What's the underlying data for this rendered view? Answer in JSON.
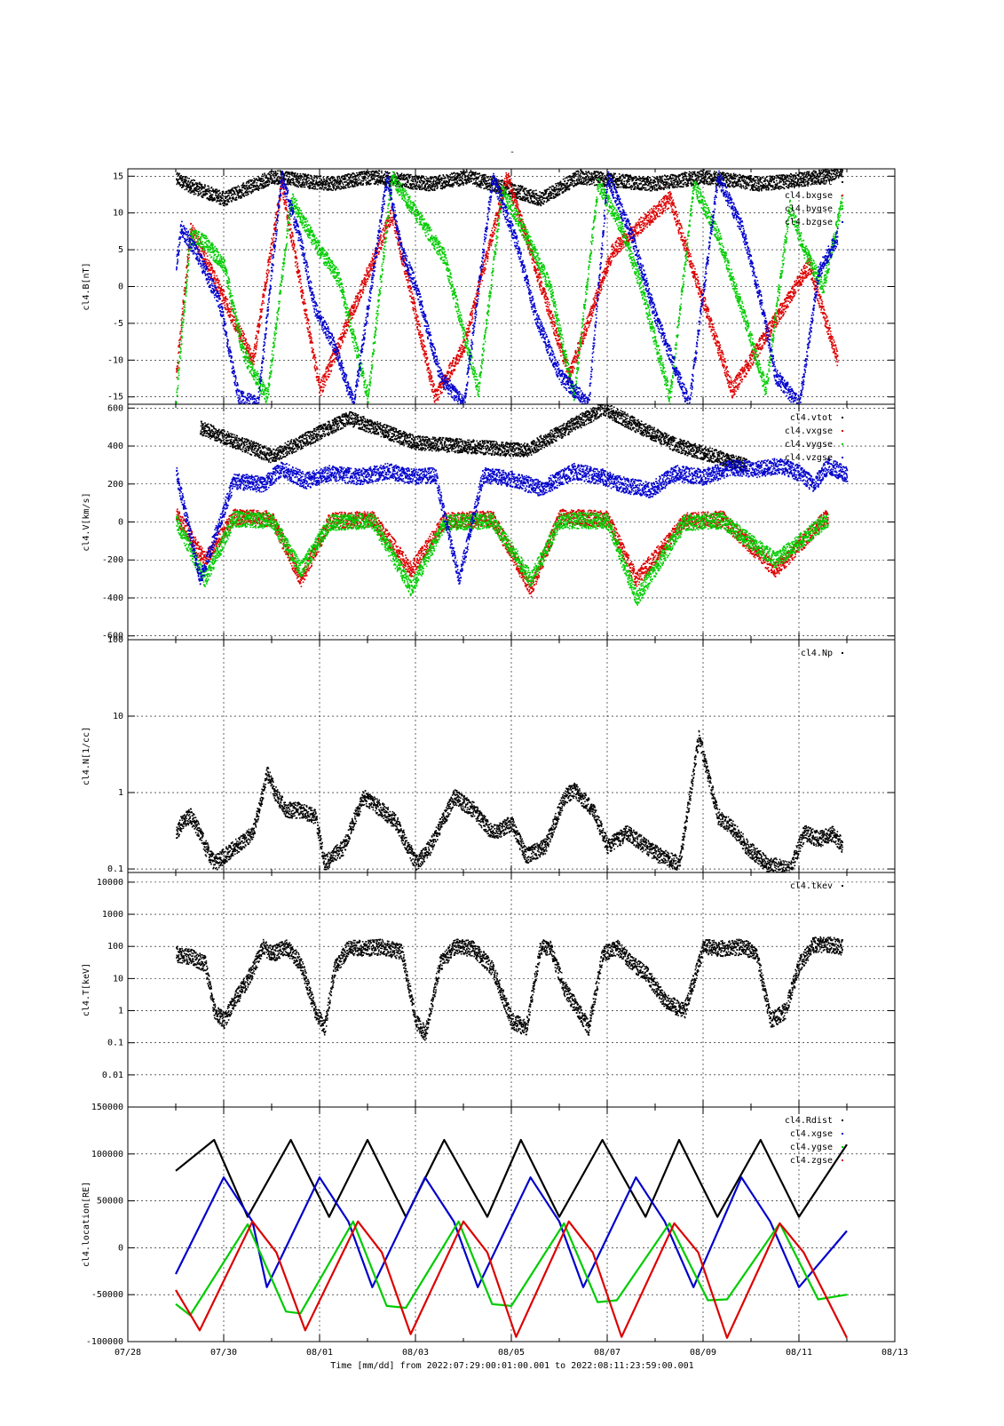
{
  "page_title": "-",
  "x_axis": {
    "label": "Time [mm/dd]  from 2022:07:29:00:01:00.001  to  2022:08:11:23:59:00.001",
    "tick_labels": [
      "07/28",
      "07/30",
      "08/01",
      "08/03",
      "08/05",
      "08/07",
      "08/09",
      "08/11",
      "08/13"
    ],
    "range_days": [
      0,
      16
    ],
    "data_span_days": [
      1.0,
      15.0
    ]
  },
  "colors": {
    "black": "#000000",
    "red": "#dd0000",
    "green": "#00cc00",
    "blue": "#0000cc"
  },
  "chart_data": [
    {
      "type": "scatter",
      "ylabel": "cl4.B[nT]",
      "ylim": [
        -16,
        16
      ],
      "yticks": [
        -15,
        -10,
        -5,
        0,
        5,
        10,
        15
      ],
      "ytick_labels": [
        "-15",
        "-10",
        "-5",
        "0",
        "5",
        "10",
        "15"
      ],
      "grid": true,
      "legend_position": "top-right",
      "series": [
        {
          "name": "cl4.btot",
          "color": "#000000",
          "x": [
            1.0,
            1.2,
            2.0,
            3.0,
            4.2,
            5.1,
            6.3,
            7.1,
            8.6,
            9.4,
            10.9,
            12.0,
            13.2,
            14.5,
            14.9
          ],
          "y": [
            15,
            14,
            12,
            15,
            14,
            15,
            14,
            15,
            12,
            15,
            14,
            15,
            14,
            15,
            16
          ]
        },
        {
          "name": "cl4.bxgse",
          "color": "#dd0000",
          "x": [
            1.0,
            1.3,
            2.6,
            3.2,
            4.0,
            5.5,
            6.4,
            7.0,
            7.9,
            9.2,
            10.1,
            11.3,
            12.6,
            14.2,
            14.8
          ],
          "y": [
            -12,
            8,
            -10,
            14,
            -14,
            10,
            -15,
            -8,
            15,
            -12,
            5,
            12,
            -14,
            3,
            -10
          ]
        },
        {
          "name": "cl4.bygse",
          "color": "#00cc00",
          "x": [
            1.0,
            1.3,
            1.6,
            2.0,
            2.4,
            2.9,
            3.4,
            3.9,
            4.4,
            5.0,
            5.5,
            6.1,
            6.6,
            7.3,
            7.8,
            8.3,
            8.8,
            9.3,
            9.8,
            10.3,
            10.7,
            11.3,
            11.8,
            12.3,
            12.8,
            13.3,
            13.8,
            14.1,
            14.5,
            14.9
          ],
          "y": [
            -15,
            7,
            6,
            3,
            -9,
            -15,
            12,
            6,
            1,
            -15,
            15,
            9,
            4,
            -14,
            13,
            7,
            0,
            -15,
            14,
            8,
            0,
            -15,
            14,
            7,
            -3,
            -14,
            11,
            5,
            0,
            12
          ]
        },
        {
          "name": "cl4.bzgse",
          "color": "#0000cc",
          "x": [
            1.0,
            1.1,
            1.4,
            1.9,
            2.3,
            2.7,
            3.2,
            3.6,
            3.9,
            4.3,
            4.7,
            5.4,
            5.7,
            6.0,
            6.5,
            7.0,
            7.6,
            8.1,
            8.5,
            9.0,
            9.6,
            10.0,
            10.5,
            11.0,
            11.7,
            12.3,
            12.8,
            13.2,
            13.5,
            14.0,
            14.4,
            14.8
          ],
          "y": [
            3,
            8,
            5,
            -2,
            -15,
            -16,
            15,
            6,
            -3,
            -8,
            -16,
            15,
            5,
            0,
            -12,
            -16,
            15,
            6,
            -4,
            -12,
            -16,
            15,
            7,
            -4,
            -16,
            15,
            8,
            -2,
            -12,
            -16,
            2,
            7
          ]
        }
      ]
    },
    {
      "type": "scatter",
      "ylabel": "cl4.V[km/s]",
      "ylim": [
        -620,
        620
      ],
      "yticks": [
        -600,
        -400,
        -200,
        0,
        200,
        400,
        600
      ],
      "ytick_labels": [
        "-600",
        "-400",
        "-200",
        "0",
        "200",
        "400",
        "600"
      ],
      "grid": true,
      "legend_position": "top-right",
      "series": [
        {
          "name": "cl4.vtot",
          "color": "#000000",
          "x": [
            1.5,
            3.0,
            4.6,
            6.0,
            8.3,
            9.9,
            11.4,
            12.9
          ],
          "y": [
            500,
            350,
            550,
            420,
            380,
            600,
            410,
            300
          ]
        },
        {
          "name": "cl4.vxgse",
          "color": "#dd0000",
          "x": [
            1.0,
            1.6,
            2.2,
            3.0,
            3.6,
            4.2,
            5.1,
            5.9,
            6.6,
            7.6,
            8.4,
            9.0,
            10.0,
            10.6,
            11.6,
            12.4,
            13.5,
            14.6
          ],
          "y": [
            40,
            -200,
            30,
            20,
            -300,
            10,
            20,
            -250,
            10,
            20,
            -350,
            30,
            20,
            -300,
            10,
            20,
            -250,
            40
          ]
        },
        {
          "name": "cl4.vygse",
          "color": "#00cc00",
          "x": [
            1.0,
            1.6,
            2.2,
            3.0,
            3.6,
            4.2,
            5.1,
            5.9,
            6.6,
            7.6,
            8.4,
            9.0,
            10.0,
            10.6,
            11.6,
            12.4,
            13.5,
            14.6
          ],
          "y": [
            10,
            -300,
            20,
            10,
            -250,
            0,
            10,
            -350,
            0,
            10,
            -300,
            10,
            10,
            -400,
            0,
            10,
            -200,
            20
          ]
        },
        {
          "name": "cl4.vzgse",
          "color": "#0000cc",
          "x": [
            1.0,
            1.5,
            2.2,
            2.8,
            3.2,
            3.7,
            4.2,
            4.8,
            5.4,
            6.0,
            6.4,
            6.9,
            7.4,
            8.0,
            8.6,
            9.3,
            9.9,
            10.3,
            10.9,
            11.4,
            12.0,
            12.6,
            13.1,
            13.6,
            14.0,
            14.3,
            14.6,
            15.0
          ],
          "y": [
            260,
            -300,
            220,
            200,
            280,
            220,
            260,
            240,
            270,
            240,
            250,
            -300,
            250,
            230,
            180,
            270,
            240,
            200,
            170,
            260,
            240,
            290,
            280,
            300,
            260,
            200,
            300,
            250
          ]
        }
      ]
    },
    {
      "type": "scatter",
      "ylabel": "cl4.N[1/cc]",
      "yscale": "log",
      "ylim": [
        0.09,
        100
      ],
      "yticks": [
        0.1,
        1,
        10,
        100
      ],
      "ytick_labels": [
        "0.1",
        "1",
        "10",
        "100"
      ],
      "grid": true,
      "legend_position": "top-right",
      "series": [
        {
          "name": "cl4.Np",
          "color": "#000000",
          "x": [
            1.0,
            1.1,
            1.3,
            1.5,
            1.6,
            1.8,
            2.6,
            2.9,
            3.1,
            3.3,
            3.6,
            3.9,
            4.1,
            4.5,
            4.9,
            5.3,
            5.6,
            6.0,
            6.3,
            6.8,
            7.2,
            7.6,
            8.0,
            8.3,
            8.7,
            9.1,
            9.3,
            9.7,
            10.0,
            10.4,
            10.8,
            11.1,
            11.5,
            11.9,
            12.3,
            12.6,
            12.9,
            13.3,
            13.8,
            14.1,
            14.4,
            14.7,
            14.9
          ],
          "y": [
            0.3,
            0.4,
            0.5,
            0.3,
            0.2,
            0.12,
            0.3,
            1.8,
            0.9,
            0.6,
            0.6,
            0.5,
            0.12,
            0.2,
            0.9,
            0.6,
            0.4,
            0.12,
            0.2,
            0.9,
            0.6,
            0.3,
            0.4,
            0.15,
            0.2,
            0.9,
            1.1,
            0.6,
            0.2,
            0.3,
            0.2,
            0.15,
            0.12,
            5.5,
            0.5,
            0.35,
            0.2,
            0.12,
            0.1,
            0.3,
            0.25,
            0.3,
            0.2
          ]
        }
      ]
    },
    {
      "type": "scatter",
      "ylabel": "cl4.T[keV]",
      "yscale": "log",
      "ylim": [
        0.001,
        20000
      ],
      "yticks": [
        0.01,
        0.1,
        1,
        10,
        100,
        1000,
        10000
      ],
      "ytick_labels": [
        "0.01",
        "0.1",
        "1",
        "10",
        "100",
        "1000",
        "10000"
      ],
      "grid": true,
      "legend_position": "top-right",
      "series": [
        {
          "name": "cl4.tkev",
          "color": "#000000",
          "x": [
            1.0,
            1.3,
            1.6,
            1.8,
            2.0,
            2.2,
            2.5,
            2.8,
            3.0,
            3.3,
            3.6,
            3.9,
            4.1,
            4.3,
            4.6,
            4.9,
            5.3,
            5.7,
            6.0,
            6.2,
            6.5,
            6.8,
            7.2,
            7.6,
            8.0,
            8.3,
            8.6,
            8.8,
            9.1,
            9.4,
            9.6,
            9.9,
            10.2,
            10.5,
            10.8,
            11.2,
            11.6,
            12.0,
            12.4,
            12.8,
            13.1,
            13.4,
            13.7,
            14.0,
            14.3,
            14.6,
            14.9
          ],
          "y": [
            60,
            50,
            30,
            1,
            0.5,
            2,
            10,
            100,
            60,
            100,
            30,
            1,
            0.3,
            20,
            100,
            90,
            100,
            70,
            0.5,
            0.2,
            30,
            100,
            90,
            20,
            0.5,
            0.3,
            100,
            90,
            5,
            1,
            0.3,
            60,
            100,
            30,
            15,
            2,
            1,
            100,
            90,
            100,
            70,
            0.5,
            1,
            30,
            120,
            120,
            100
          ]
        }
      ]
    },
    {
      "type": "line",
      "ylabel": "cl4.location[RE]",
      "ylim": [
        -100000,
        150000
      ],
      "yticks": [
        -100000,
        -50000,
        0,
        50000,
        100000,
        150000
      ],
      "ytick_labels": [
        "-100000",
        "-50000",
        "0",
        "50000",
        "100000",
        "150000"
      ],
      "grid": true,
      "legend_position": "top-right",
      "series": [
        {
          "name": "cl4.Rdist",
          "color": "#000000",
          "x": [
            1.0,
            1.8,
            2.5,
            3.4,
            4.2,
            5.0,
            5.8,
            6.6,
            7.5,
            8.2,
            9.0,
            9.9,
            10.8,
            11.5,
            12.3,
            13.2,
            14.0,
            15.0
          ],
          "y": [
            82000,
            115000,
            33000,
            115000,
            33000,
            115000,
            33000,
            115000,
            33000,
            115000,
            33000,
            115000,
            33000,
            115000,
            33000,
            115000,
            33000,
            110000
          ]
        },
        {
          "name": "cl4.xgse",
          "color": "#0000cc",
          "x": [
            1.0,
            2.0,
            2.6,
            2.9,
            4.0,
            4.6,
            5.1,
            6.2,
            6.8,
            7.3,
            8.4,
            9.0,
            9.5,
            10.6,
            11.2,
            11.8,
            12.8,
            13.4,
            14.0,
            15.0
          ],
          "y": [
            -28000,
            75000,
            28000,
            -42000,
            75000,
            28000,
            -42000,
            75000,
            28000,
            -42000,
            75000,
            28000,
            -42000,
            75000,
            28000,
            -42000,
            75000,
            28000,
            -42000,
            18000
          ]
        },
        {
          "name": "cl4.ygse",
          "color": "#00cc00",
          "x": [
            1.0,
            1.3,
            2.5,
            3.3,
            3.6,
            4.7,
            5.4,
            5.8,
            6.9,
            7.6,
            8.0,
            9.1,
            9.8,
            10.2,
            11.3,
            12.1,
            12.5,
            13.6,
            14.4,
            15.0
          ],
          "y": [
            -60000,
            -72000,
            25000,
            -68000,
            -70000,
            28000,
            -62000,
            -64000,
            28000,
            -60000,
            -62000,
            26000,
            -58000,
            -56000,
            26000,
            -56000,
            -55000,
            26000,
            -55000,
            -50000
          ]
        },
        {
          "name": "cl4.zgse",
          "color": "#dd0000",
          "x": [
            1.0,
            1.5,
            2.6,
            3.1,
            3.7,
            4.8,
            5.3,
            5.9,
            7.0,
            7.5,
            8.1,
            9.2,
            9.7,
            10.3,
            11.4,
            11.9,
            12.5,
            13.6,
            14.1,
            15.0
          ],
          "y": [
            -45000,
            -88000,
            28000,
            -5000,
            -88000,
            28000,
            -5000,
            -92000,
            28000,
            -5000,
            -95000,
            28000,
            -5000,
            -95000,
            26000,
            -5000,
            -96000,
            26000,
            -5000,
            -96000
          ]
        }
      ]
    }
  ]
}
